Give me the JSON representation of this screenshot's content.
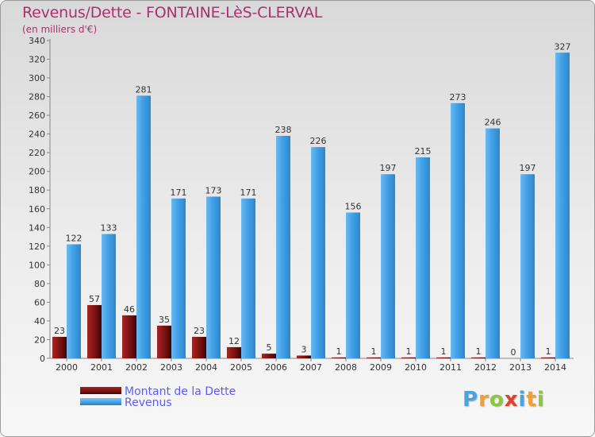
{
  "header": {
    "title": "Revenus/Dette - FONTAINE-LèS-CLERVAL",
    "subtitle": "(en milliers d'€)"
  },
  "legend": {
    "items": [
      {
        "label": "Montant de la Dette",
        "color": "#7a1010"
      },
      {
        "label": "Revenus",
        "color": "#3f9ee6"
      }
    ]
  },
  "branding": {
    "letters": [
      {
        "ch": "P",
        "color": "#4aa3df"
      },
      {
        "ch": "r",
        "color": "#f0a030"
      },
      {
        "ch": "o",
        "color": "#8cc63f"
      },
      {
        "ch": "x",
        "color": "#e0402a"
      },
      {
        "ch": "i",
        "color": "#4aa3df"
      },
      {
        "ch": "t",
        "color": "#f0a030"
      },
      {
        "ch": "i",
        "color": "#8cc63f"
      }
    ]
  },
  "chart_data": {
    "type": "bar",
    "title": "Revenus/Dette - FONTAINE-LèS-CLERVAL",
    "subtitle": "(en milliers d'€)",
    "categories": [
      "2000",
      "2001",
      "2002",
      "2003",
      "2004",
      "2005",
      "2006",
      "2007",
      "2008",
      "2009",
      "2010",
      "2011",
      "2012",
      "2013",
      "2014"
    ],
    "series": [
      {
        "name": "Montant de la Dette",
        "color": "#7a1010",
        "values": [
          23,
          57,
          46,
          35,
          23,
          12,
          5,
          3,
          1,
          1,
          1,
          1,
          1,
          0,
          1
        ]
      },
      {
        "name": "Revenus",
        "color": "#3f9ee6",
        "values": [
          122,
          133,
          281,
          171,
          173,
          171,
          238,
          226,
          156,
          197,
          215,
          273,
          246,
          197,
          327
        ]
      }
    ],
    "ylim": [
      0,
      340
    ],
    "yticks": [
      0,
      20,
      40,
      60,
      80,
      100,
      120,
      140,
      160,
      180,
      200,
      220,
      240,
      260,
      280,
      300,
      320,
      340
    ],
    "grid": false,
    "legend_position": "bottom-left"
  }
}
